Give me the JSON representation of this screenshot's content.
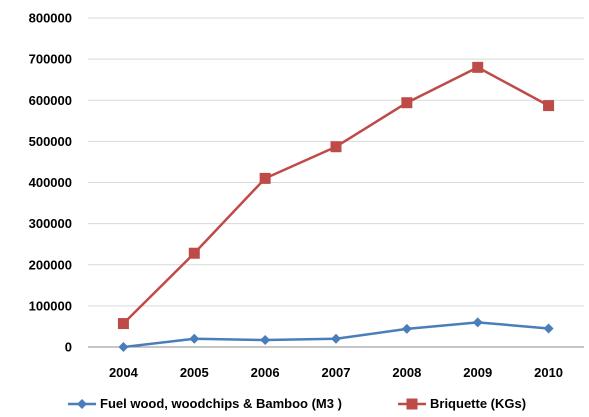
{
  "chart_data": {
    "type": "line",
    "title": "",
    "xlabel": "",
    "ylabel": "",
    "categories": [
      "2004",
      "2005",
      "2006",
      "2007",
      "2008",
      "2009",
      "2010"
    ],
    "y_ticks": [
      "0",
      "100000",
      "200000",
      "300000",
      "400000",
      "500000",
      "600000",
      "700000",
      "800000"
    ],
    "ylim": [
      0,
      800000
    ],
    "grid": true,
    "legend_position": "bottom",
    "series": [
      {
        "name": "Fuel wood, woodchips & Bamboo (M3 )",
        "marker": "diamond",
        "color": "#4a7ebb",
        "values": [
          0,
          20000,
          17000,
          20000,
          44000,
          60000,
          45000
        ]
      },
      {
        "name": "Briquette (KGs)",
        "marker": "square",
        "color": "#be4b48",
        "values": [
          57000,
          228000,
          410000,
          487000,
          594000,
          680000,
          587000
        ]
      }
    ]
  }
}
